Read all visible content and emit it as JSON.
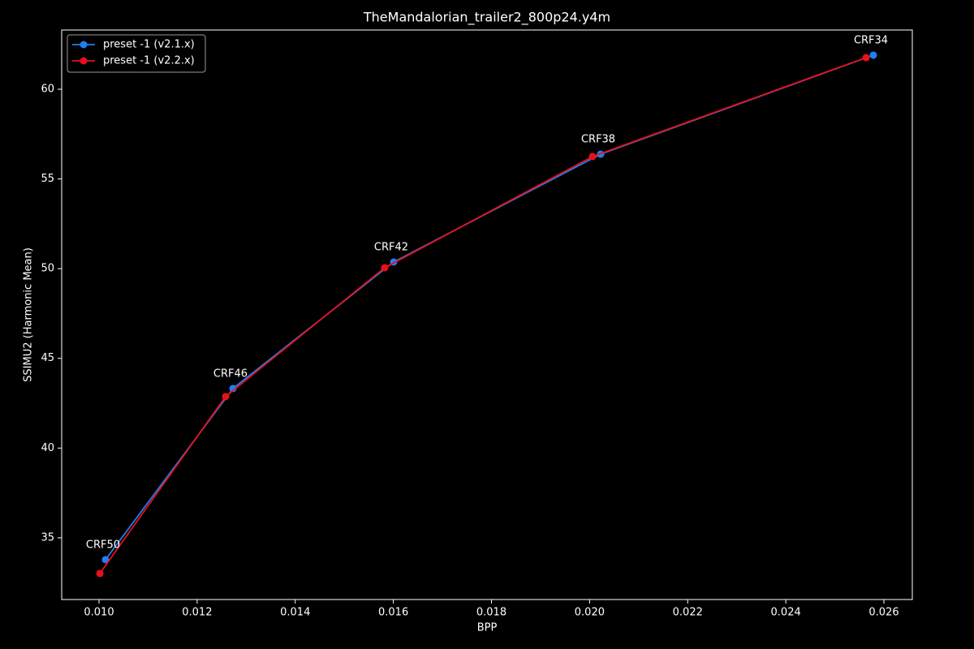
{
  "chart_data": {
    "type": "line",
    "title": "TheMandalorian_trailer2_800p24.y4m",
    "xlabel": "BPP",
    "ylabel": "SSIMU2 (Harmonic Mean)",
    "xlim": [
      0.009239,
      0.026579
    ],
    "ylim": [
      31.56,
      63.3
    ],
    "xticks": [
      {
        "value": 0.01,
        "label": "0.010"
      },
      0.012,
      0.014,
      0.016,
      0.018,
      {
        "value": 0.02,
        "label": "0.020"
      },
      0.022,
      0.024,
      0.026
    ],
    "yticks": [
      35,
      40,
      45,
      50,
      55,
      60
    ],
    "legend": "upper left",
    "series": [
      {
        "name": "preset -1 (v2.1.x)",
        "color": "#1f7ff0",
        "x": [
          0.010132,
          0.01273,
          0.016006,
          0.020226,
          0.025785
        ],
        "values": [
          33.78,
          43.32,
          50.37,
          56.38,
          61.9
        ]
      },
      {
        "name": "preset -1 (v2.2.x)",
        "color": "#e8101a",
        "x": [
          0.010017,
          0.012581,
          0.015824,
          0.02006,
          0.025636
        ],
        "values": [
          33.01,
          42.87,
          50.05,
          56.25,
          61.76
        ]
      }
    ],
    "point_labels": [
      "CRF50",
      "CRF46",
      "CRF42",
      "CRF38",
      "CRF34"
    ]
  }
}
